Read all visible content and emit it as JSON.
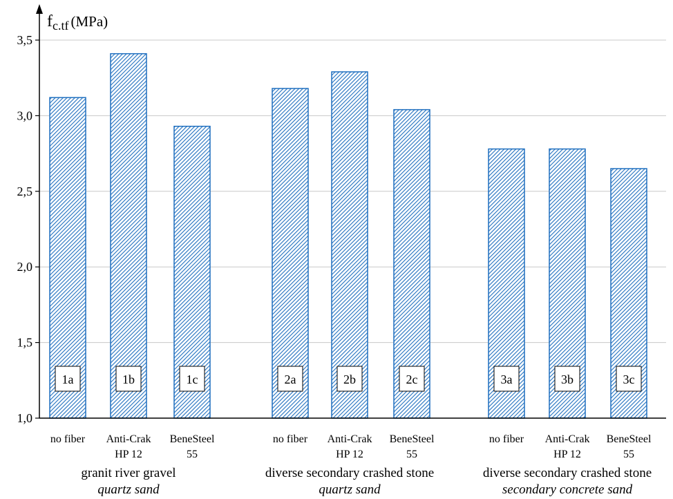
{
  "chart_data": {
    "type": "bar",
    "ylabel_main": "f",
    "ylabel_sub": "c.tf",
    "ylabel_unit": "(MPa)",
    "ylim": [
      1.0,
      3.5
    ],
    "yticks": [
      "1,0",
      "1,5",
      "2,0",
      "2,5",
      "3,0",
      "3,5"
    ],
    "ytick_values": [
      1.0,
      1.5,
      2.0,
      2.5,
      3.0,
      3.5
    ],
    "grid": true,
    "bar_color": "#1f6fbf",
    "bars": [
      {
        "code": "1a",
        "label_line1": "no fiber",
        "label_line2": "",
        "value": 3.12
      },
      {
        "code": "1b",
        "label_line1": "Anti-Crak",
        "label_line2": "HP 12",
        "value": 3.41
      },
      {
        "code": "1c",
        "label_line1": "BeneSteel",
        "label_line2": "55",
        "value": 2.93
      },
      {
        "code": "2a",
        "label_line1": "no fiber",
        "label_line2": "",
        "value": 3.18
      },
      {
        "code": "2b",
        "label_line1": "Anti-Crak",
        "label_line2": "HP 12",
        "value": 3.29
      },
      {
        "code": "2c",
        "label_line1": "BeneSteel",
        "label_line2": "55",
        "value": 3.04
      },
      {
        "code": "3a",
        "label_line1": "no fiber",
        "label_line2": "",
        "value": 2.78
      },
      {
        "code": "3b",
        "label_line1": "Anti-Crak",
        "label_line2": "HP 12",
        "value": 2.78
      },
      {
        "code": "3c",
        "label_line1": "BeneSteel",
        "label_line2": "55",
        "value": 2.65
      }
    ],
    "groups": [
      {
        "aggregate": "granit river gravel",
        "sand": "quartz sand"
      },
      {
        "aggregate": "diverse secondary crashed stone",
        "sand": "quartz sand"
      },
      {
        "aggregate": "diverse secondary crashed stone",
        "sand": "secondary concrete sand"
      }
    ]
  }
}
